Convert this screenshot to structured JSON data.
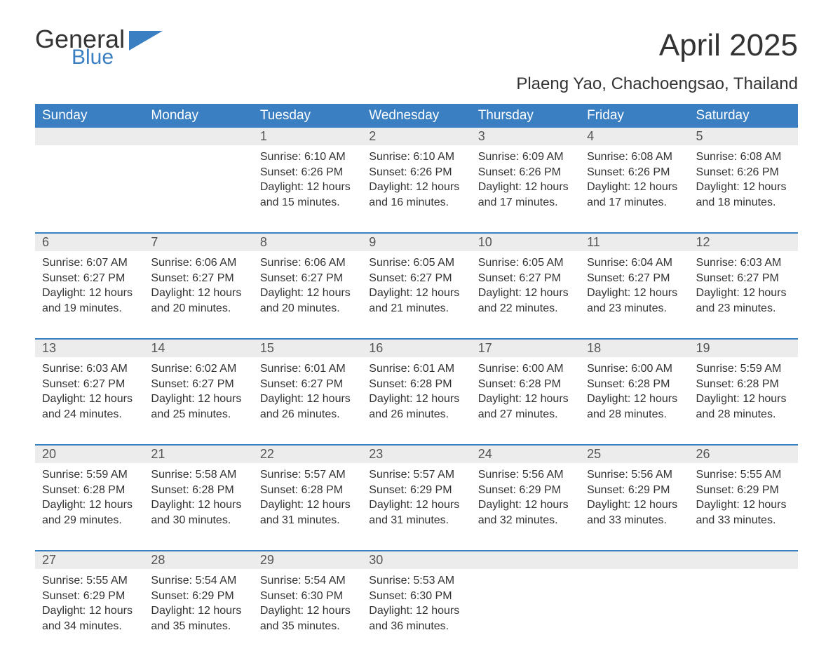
{
  "logo": {
    "text_a": "General",
    "text_b": "Blue",
    "flag_color": "#3a7fc2",
    "text_color_a": "#333333"
  },
  "title": "April 2025",
  "location": "Plaeng Yao, Chachoengsao, Thailand",
  "styling": {
    "header_bg": "#3a7fc2",
    "header_text": "#ffffff",
    "daynum_bg": "#ececec",
    "row_divider": "#3a7fc2",
    "body_text": "#333333",
    "page_bg": "#ffffff",
    "th_fontsize": 19,
    "title_fontsize": 44,
    "location_fontsize": 24,
    "cell_fontsize": 16
  },
  "weekdays": [
    "Sunday",
    "Monday",
    "Tuesday",
    "Wednesday",
    "Thursday",
    "Friday",
    "Saturday"
  ],
  "weeks": [
    [
      null,
      null,
      {
        "d": "1",
        "sr": "6:10 AM",
        "ss": "6:26 PM",
        "dl": "12 hours and 15 minutes."
      },
      {
        "d": "2",
        "sr": "6:10 AM",
        "ss": "6:26 PM",
        "dl": "12 hours and 16 minutes."
      },
      {
        "d": "3",
        "sr": "6:09 AM",
        "ss": "6:26 PM",
        "dl": "12 hours and 17 minutes."
      },
      {
        "d": "4",
        "sr": "6:08 AM",
        "ss": "6:26 PM",
        "dl": "12 hours and 17 minutes."
      },
      {
        "d": "5",
        "sr": "6:08 AM",
        "ss": "6:26 PM",
        "dl": "12 hours and 18 minutes."
      }
    ],
    [
      {
        "d": "6",
        "sr": "6:07 AM",
        "ss": "6:27 PM",
        "dl": "12 hours and 19 minutes."
      },
      {
        "d": "7",
        "sr": "6:06 AM",
        "ss": "6:27 PM",
        "dl": "12 hours and 20 minutes."
      },
      {
        "d": "8",
        "sr": "6:06 AM",
        "ss": "6:27 PM",
        "dl": "12 hours and 20 minutes."
      },
      {
        "d": "9",
        "sr": "6:05 AM",
        "ss": "6:27 PM",
        "dl": "12 hours and 21 minutes."
      },
      {
        "d": "10",
        "sr": "6:05 AM",
        "ss": "6:27 PM",
        "dl": "12 hours and 22 minutes."
      },
      {
        "d": "11",
        "sr": "6:04 AM",
        "ss": "6:27 PM",
        "dl": "12 hours and 23 minutes."
      },
      {
        "d": "12",
        "sr": "6:03 AM",
        "ss": "6:27 PM",
        "dl": "12 hours and 23 minutes."
      }
    ],
    [
      {
        "d": "13",
        "sr": "6:03 AM",
        "ss": "6:27 PM",
        "dl": "12 hours and 24 minutes."
      },
      {
        "d": "14",
        "sr": "6:02 AM",
        "ss": "6:27 PM",
        "dl": "12 hours and 25 minutes."
      },
      {
        "d": "15",
        "sr": "6:01 AM",
        "ss": "6:27 PM",
        "dl": "12 hours and 26 minutes."
      },
      {
        "d": "16",
        "sr": "6:01 AM",
        "ss": "6:28 PM",
        "dl": "12 hours and 26 minutes."
      },
      {
        "d": "17",
        "sr": "6:00 AM",
        "ss": "6:28 PM",
        "dl": "12 hours and 27 minutes."
      },
      {
        "d": "18",
        "sr": "6:00 AM",
        "ss": "6:28 PM",
        "dl": "12 hours and 28 minutes."
      },
      {
        "d": "19",
        "sr": "5:59 AM",
        "ss": "6:28 PM",
        "dl": "12 hours and 28 minutes."
      }
    ],
    [
      {
        "d": "20",
        "sr": "5:59 AM",
        "ss": "6:28 PM",
        "dl": "12 hours and 29 minutes."
      },
      {
        "d": "21",
        "sr": "5:58 AM",
        "ss": "6:28 PM",
        "dl": "12 hours and 30 minutes."
      },
      {
        "d": "22",
        "sr": "5:57 AM",
        "ss": "6:28 PM",
        "dl": "12 hours and 31 minutes."
      },
      {
        "d": "23",
        "sr": "5:57 AM",
        "ss": "6:29 PM",
        "dl": "12 hours and 31 minutes."
      },
      {
        "d": "24",
        "sr": "5:56 AM",
        "ss": "6:29 PM",
        "dl": "12 hours and 32 minutes."
      },
      {
        "d": "25",
        "sr": "5:56 AM",
        "ss": "6:29 PM",
        "dl": "12 hours and 33 minutes."
      },
      {
        "d": "26",
        "sr": "5:55 AM",
        "ss": "6:29 PM",
        "dl": "12 hours and 33 minutes."
      }
    ],
    [
      {
        "d": "27",
        "sr": "5:55 AM",
        "ss": "6:29 PM",
        "dl": "12 hours and 34 minutes."
      },
      {
        "d": "28",
        "sr": "5:54 AM",
        "ss": "6:29 PM",
        "dl": "12 hours and 35 minutes."
      },
      {
        "d": "29",
        "sr": "5:54 AM",
        "ss": "6:30 PM",
        "dl": "12 hours and 35 minutes."
      },
      {
        "d": "30",
        "sr": "5:53 AM",
        "ss": "6:30 PM",
        "dl": "12 hours and 36 minutes."
      },
      null,
      null,
      null
    ]
  ],
  "labels": {
    "sunrise": "Sunrise: ",
    "sunset": "Sunset: ",
    "daylight": "Daylight: "
  }
}
